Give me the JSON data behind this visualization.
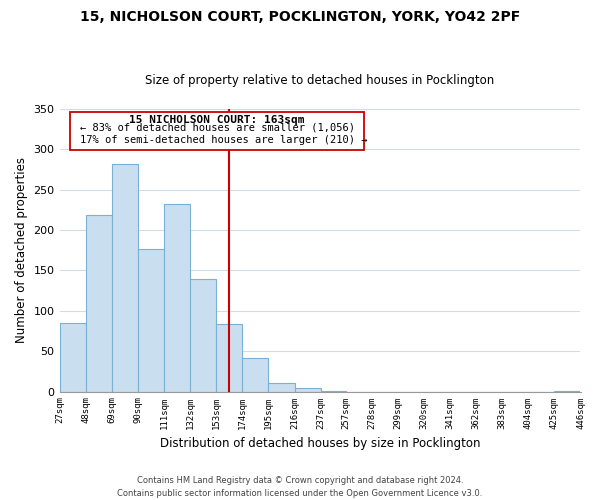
{
  "title_line1": "15, NICHOLSON COURT, POCKLINGTON, YORK, YO42 2PF",
  "title_line2": "Size of property relative to detached houses in Pocklington",
  "xlabel": "Distribution of detached houses by size in Pocklington",
  "ylabel": "Number of detached properties",
  "bar_edges": [
    27,
    48,
    69,
    90,
    111,
    132,
    153,
    174,
    195,
    216,
    237,
    257,
    278,
    299,
    320,
    341,
    362,
    383,
    404,
    425,
    446
  ],
  "bar_heights": [
    85,
    219,
    282,
    176,
    232,
    139,
    84,
    41,
    11,
    4,
    1,
    0,
    0,
    0,
    0,
    0,
    0,
    0,
    0,
    1
  ],
  "bar_color": "#c9dff0",
  "bar_edge_color": "#7ab0d4",
  "property_line_x": 163,
  "property_line_color": "#cc0000",
  "ann_line1": "15 NICHOLSON COURT: 163sqm",
  "ann_line2": "← 83% of detached houses are smaller (1,056)",
  "ann_line3": "17% of semi-detached houses are larger (210) →",
  "ylim": [
    0,
    350
  ],
  "yticks": [
    0,
    50,
    100,
    150,
    200,
    250,
    300,
    350
  ],
  "xlim": [
    27,
    446
  ],
  "footnote1": "Contains HM Land Registry data © Crown copyright and database right 2024.",
  "footnote2": "Contains public sector information licensed under the Open Government Licence v3.0.",
  "bg_color": "#ffffff",
  "grid_color": "#d0dde8"
}
